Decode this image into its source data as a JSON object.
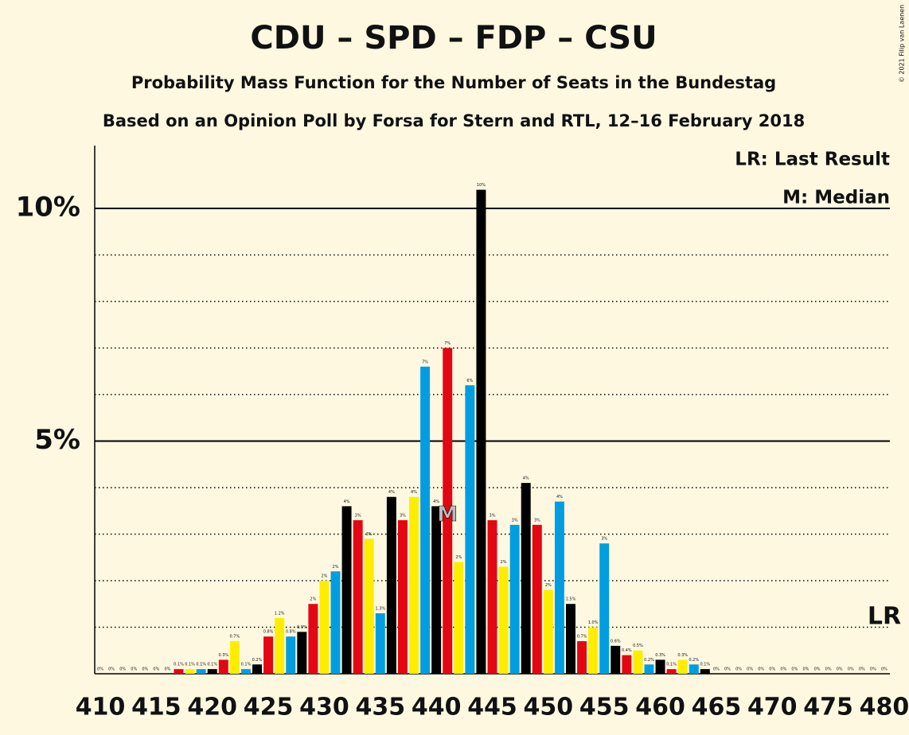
{
  "chart_data": {
    "type": "bar",
    "title": "CDU – SPD – FDP – CSU",
    "subtitle": "Probability Mass Function for the Number of Seats in the Bundestag",
    "subtitle2": "Based on an Opinion Poll by Forsa for Stern and RTL, 12–16 February 2018",
    "copyright": "© 2021 Filip van Laenen",
    "legend_lr": "LR: Last Result",
    "legend_median": "M: Median",
    "last_result": {
      "x": 480,
      "label": "LR"
    },
    "median": {
      "x": 441,
      "label": "M"
    },
    "x": [
      410,
      411,
      412,
      413,
      414,
      415,
      416,
      417,
      418,
      419,
      420,
      421,
      422,
      423,
      424,
      425,
      426,
      427,
      428,
      429,
      430,
      431,
      432,
      433,
      434,
      435,
      436,
      437,
      438,
      439,
      440,
      441,
      442,
      443,
      444,
      445,
      446,
      447,
      448,
      449,
      450,
      451,
      452,
      453,
      454,
      455,
      456,
      457,
      458,
      459,
      460,
      461,
      462,
      463,
      464,
      465,
      466,
      467,
      468,
      469,
      470,
      471,
      472,
      473,
      474,
      475,
      476,
      477,
      478,
      479,
      480
    ],
    "values": [
      0,
      0,
      0,
      0,
      0,
      0,
      0,
      0.1,
      0.1,
      0.1,
      0.1,
      0.3,
      0.7,
      0.1,
      0.2,
      0.8,
      1.2,
      0.8,
      0.9,
      1.5,
      2.0,
      2.2,
      3.6,
      3.3,
      2.9,
      1.3,
      3.8,
      3.3,
      3.8,
      6.6,
      3.6,
      7.0,
      2.4,
      6.2,
      10.4,
      3.3,
      2.3,
      3.2,
      4.1,
      3.2,
      1.8,
      3.7,
      1.5,
      0.7,
      1.0,
      2.8,
      0.6,
      0.4,
      0.5,
      0.2,
      0.3,
      0.1,
      0.3,
      0.2,
      0.1,
      0,
      0,
      0,
      0,
      0,
      0,
      0,
      0,
      0,
      0,
      0,
      0,
      0,
      0,
      0,
      0
    ],
    "value_labels": [
      "0%",
      "0%",
      "0%",
      "0%",
      "0%",
      "0%",
      "0%",
      "0.1%",
      "0.1%",
      "0.1%",
      "0.1%",
      "0.3%",
      "0.7%",
      "0.1%",
      "0.2%",
      "0.8%",
      "1.2%",
      "0.8%",
      "0.9%",
      "2%",
      "2%",
      "2%",
      "4%",
      "3%",
      "3%",
      "1.3%",
      "4%",
      "3%",
      "4%",
      "7%",
      "4%",
      "7%",
      "2%",
      "6%",
      "10%",
      "3%",
      "2%",
      "3%",
      "4%",
      "3%",
      "2%",
      "4%",
      "1.5%",
      "0.7%",
      "1.0%",
      "3%",
      "0.6%",
      "0.4%",
      "0.5%",
      "0.2%",
      "0.3%",
      "0.1%",
      "0.3%",
      "0.2%",
      "0.1%",
      "0%",
      "0%",
      "0%",
      "0%",
      "0%",
      "0%",
      "0%",
      "0%",
      "0%",
      "0%",
      "0%",
      "0%",
      "0%",
      "0%",
      "0%",
      "0%"
    ],
    "colors": [
      "#ffed00",
      "#009ee0",
      "#000000",
      "#e30613",
      "#ffed00",
      "#009ee0",
      "#000000",
      "#e30613",
      "#ffed00",
      "#009ee0",
      "#000000",
      "#e30613",
      "#ffed00",
      "#009ee0",
      "#000000",
      "#e30613",
      "#ffed00",
      "#009ee0",
      "#000000",
      "#e30613",
      "#ffed00",
      "#009ee0",
      "#000000",
      "#e30613",
      "#ffed00",
      "#009ee0",
      "#000000",
      "#e30613",
      "#ffed00",
      "#009ee0",
      "#000000",
      "#e30613",
      "#ffed00",
      "#009ee0",
      "#000000",
      "#e30613",
      "#ffed00",
      "#009ee0",
      "#000000",
      "#e30613",
      "#ffed00",
      "#009ee0",
      "#000000",
      "#e30613",
      "#ffed00",
      "#009ee0",
      "#000000",
      "#e30613",
      "#ffed00",
      "#009ee0",
      "#000000",
      "#e30613",
      "#ffed00",
      "#009ee0",
      "#000000",
      "#e30613",
      "#ffed00",
      "#009ee0",
      "#000000",
      "#e30613",
      "#ffed00",
      "#009ee0",
      "#000000",
      "#e30613",
      "#ffed00",
      "#009ee0",
      "#000000",
      "#e30613",
      "#ffed00",
      "#009ee0",
      "#000000"
    ],
    "xlim": [
      409.5,
      480.5
    ],
    "xticks": [
      410,
      415,
      420,
      425,
      430,
      435,
      440,
      445,
      450,
      455,
      460,
      465,
      470,
      475,
      480
    ],
    "ylim": [
      0,
      11.35
    ],
    "yticks": [
      {
        "value": 5,
        "label": "5%"
      },
      {
        "value": 10,
        "label": "10%"
      }
    ],
    "minor_yticks": [
      1,
      2,
      3,
      4,
      6,
      7,
      8,
      9
    ]
  }
}
